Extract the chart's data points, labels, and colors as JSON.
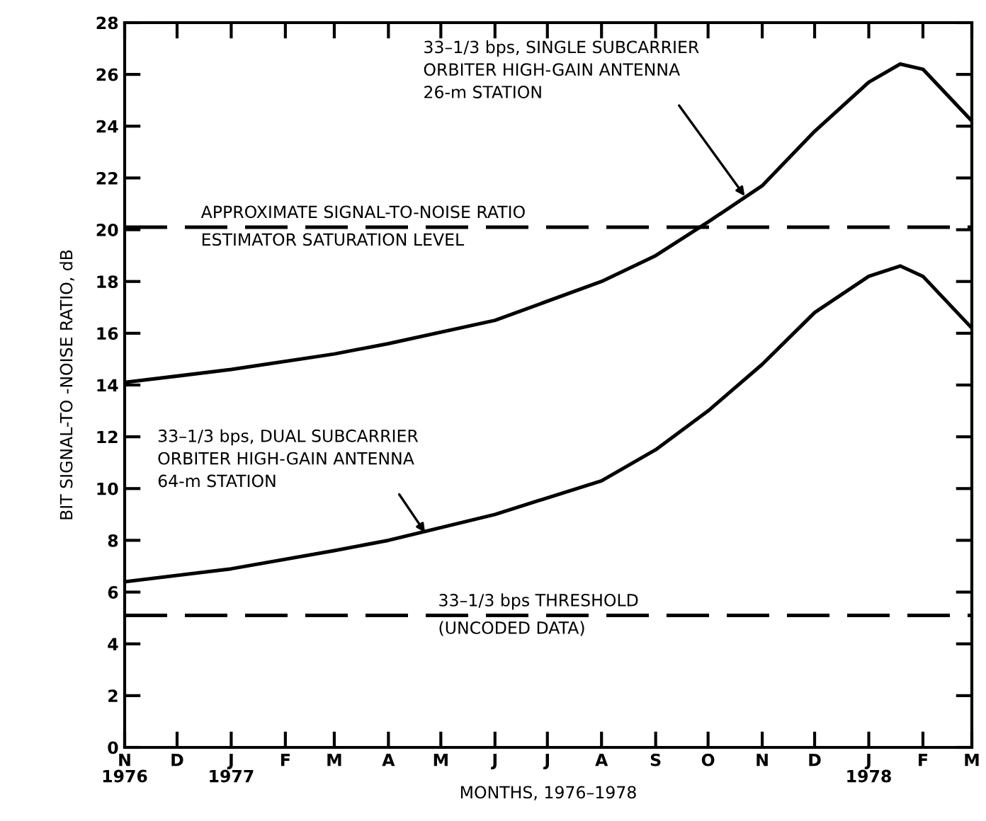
{
  "chart_data": {
    "type": "line",
    "xlabel": "MONTHS, 1976–1978",
    "ylabel": "BIT SIGNAL-TO -NOISE RATIO, dB",
    "x": [
      "1976-11-01",
      "1977-01-01",
      "1977-03-01",
      "1977-04-01",
      "1977-06-01",
      "1977-08-01",
      "1977-09-01",
      "1977-10-01",
      "1977-11-01",
      "1977-12-01",
      "1978-01-01",
      "1978-01-19",
      "1978-02-01",
      "1978-03-01"
    ],
    "series": [
      {
        "color": "#000000",
        "values": [
          14.1,
          14.6,
          15.2,
          15.6,
          16.5,
          18.0,
          19.0,
          20.3,
          21.7,
          23.8,
          25.7,
          26.4,
          26.2,
          24.2
        ]
      },
      {
        "color": "#000000",
        "values": [
          6.4,
          6.9,
          7.6,
          8.0,
          9.0,
          10.3,
          11.5,
          13.0,
          14.8,
          16.8,
          18.2,
          18.6,
          18.2,
          16.2
        ]
      }
    ],
    "xlim": [
      "1976-11-01",
      "1978-03-01"
    ],
    "xticks": [
      {
        "value": "1976-11-01",
        "label": "N\n1976"
      },
      {
        "value": "1976-12-01",
        "label": "D"
      },
      {
        "value": "1977-01-01",
        "label": "J\n1977"
      },
      {
        "value": "1977-02-01",
        "label": "F"
      },
      {
        "value": "1977-03-01",
        "label": "M"
      },
      {
        "value": "1977-04-01",
        "label": "A"
      },
      {
        "value": "1977-05-01",
        "label": "M"
      },
      {
        "value": "1977-06-01",
        "label": "J"
      },
      {
        "value": "1977-07-01",
        "label": "J"
      },
      {
        "value": "1977-08-01",
        "label": "A"
      },
      {
        "value": "1977-09-01",
        "label": "S"
      },
      {
        "value": "1977-10-01",
        "label": "O"
      },
      {
        "value": "1977-11-01",
        "label": "N"
      },
      {
        "value": "1977-12-01",
        "label": "D"
      },
      {
        "value": "1978-01-01",
        "label": "J\n1978"
      },
      {
        "value": "1978-02-01",
        "label": "F"
      },
      {
        "value": "1978-03-01",
        "label": "M"
      }
    ],
    "ylim": [
      0,
      28
    ],
    "yticks": [
      0,
      2,
      4,
      6,
      8,
      10,
      12,
      14,
      16,
      18,
      20,
      22,
      24,
      26,
      28
    ],
    "ref_lines": [
      {
        "axis": "y",
        "value": 20.1,
        "label": "APPROXIMATE SIGNAL-TO-NOISE RATIO\nESTIMATOR SATURATION LEVEL",
        "line_style": "dashed",
        "color": "#000000"
      },
      {
        "axis": "y",
        "value": 5.1,
        "label": "33–1/3 bps THRESHOLD\n(UNCODED DATA)",
        "line_style": "dashed",
        "color": "#000000"
      }
    ],
    "annotations": [
      {
        "text": "33–1/3 bps, SINGLE SUBCARRIER\nORBITER HIGH-GAIN ANTENNA\n26-m STATION",
        "x": "1977-10-22",
        "y": 21.3
      },
      {
        "text": "33–1/3 bps, DUAL SUBCARRIER\nORBITER HIGH-GAIN ANTENNA\n64-m STATION",
        "x": "1977-04-22",
        "y": 8.3
      }
    ],
    "grid": false,
    "legend": false,
    "marker": "none",
    "line_style": "solid"
  }
}
